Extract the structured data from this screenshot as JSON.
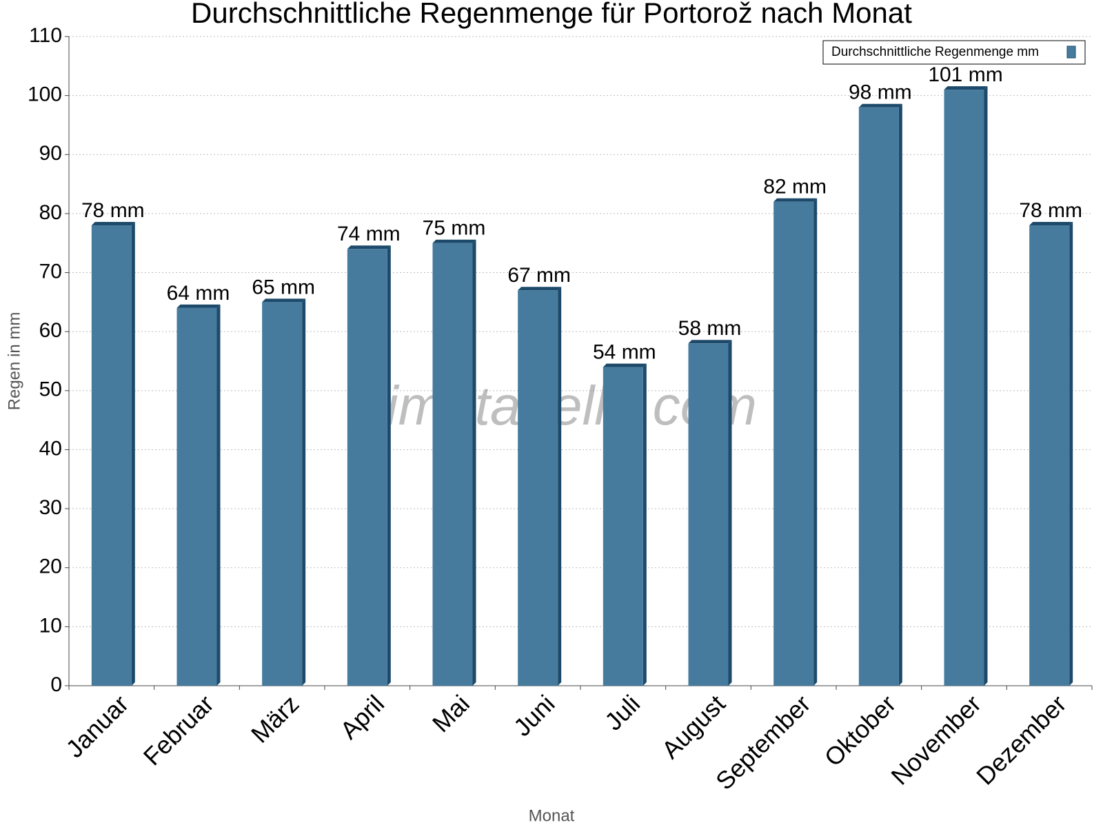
{
  "chart_data": {
    "type": "bar",
    "title": "Durchschnittliche Regenmenge für Portorož nach Monat",
    "x_label": "Monat",
    "y_label": "Regen in mm",
    "watermark": "klimatabelle.com",
    "categories": [
      "Januar",
      "Februar",
      "März",
      "April",
      "Mai",
      "Juni",
      "Juli",
      "August",
      "September",
      "Oktober",
      "November",
      "Dezember"
    ],
    "series": [
      {
        "name": "Durchschnittliche Regenmenge mm",
        "color": "#467b9e",
        "values": [
          78,
          64,
          65,
          74,
          75,
          67,
          54,
          58,
          82,
          98,
          101,
          78
        ],
        "value_labels": [
          "78 mm",
          "64 mm",
          "65 mm",
          "74 mm",
          "75 mm",
          "67 mm",
          "54 mm",
          "58 mm",
          "82 mm",
          "98 mm",
          "101 mm",
          "78 mm"
        ]
      }
    ],
    "ylim": [
      0,
      110
    ],
    "yticks": [
      0,
      10,
      20,
      30,
      40,
      50,
      60,
      70,
      80,
      90,
      100,
      110
    ],
    "grid": true,
    "legend": "top-right"
  }
}
